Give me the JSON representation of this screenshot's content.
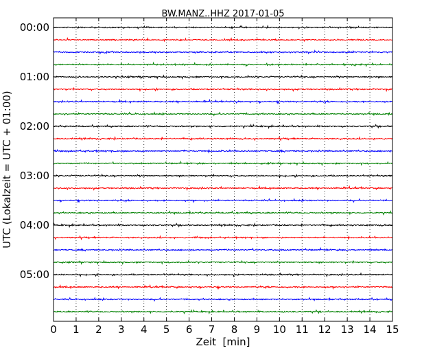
{
  "chart_data": {
    "type": "line",
    "title": "BW.MANZ..HHZ 2017-01-05",
    "xlabel": "Zeit  [min]",
    "ylabel": "UTC (Lokalzeit = UTC + 01:00)",
    "xlim": [
      0,
      15
    ],
    "x_ticks": [
      "0",
      "1",
      "2",
      "3",
      "4",
      "5",
      "6",
      "7",
      "8",
      "9",
      "10",
      "11",
      "12",
      "13",
      "14",
      "15"
    ],
    "y_ticks": [
      "00:00",
      "01:00",
      "02:00",
      "03:00",
      "04:00",
      "05:00"
    ],
    "grid": "vertical dotted",
    "trace_colors": [
      "#000000",
      "#ff0000",
      "#0000ff",
      "#008000"
    ],
    "traces_per_hour": 4,
    "trace_count": 24
  }
}
